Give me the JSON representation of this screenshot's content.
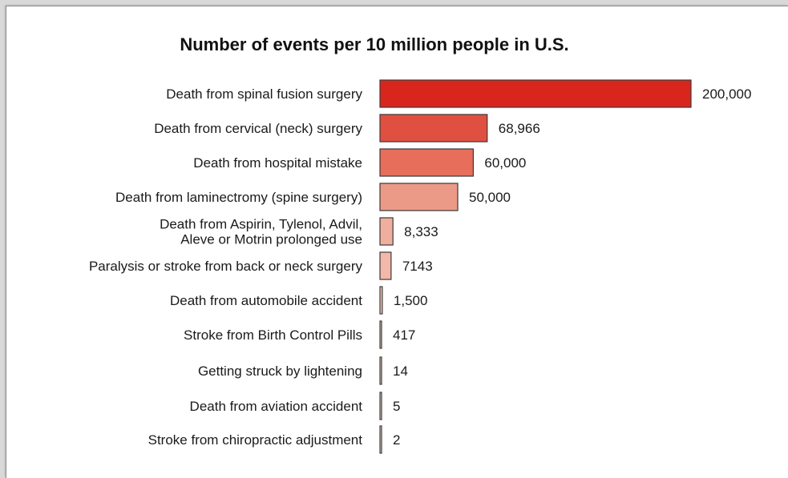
{
  "chart_data": {
    "type": "bar",
    "orientation": "horizontal",
    "title": "Number of events per 10 million people in U.S.",
    "xlabel": "",
    "ylabel": "",
    "grid": false,
    "categories": [
      [
        "Death from spinal fusion surgery"
      ],
      [
        "Death from cervical (neck) surgery"
      ],
      [
        "Death from hospital mistake"
      ],
      [
        "Death from laminectromy (spine surgery)"
      ],
      [
        "Death from  Aspirin, Tylenol, Advil,",
        "Aleve or Motrin prolonged use"
      ],
      [
        "Paralysis or stroke from back or neck surgery"
      ],
      [
        "Death from automobile accident"
      ],
      [
        "Stroke from Birth Control Pills"
      ],
      [
        "Getting struck by lightening"
      ],
      [
        "Death from aviation accident"
      ],
      [
        "Stroke from chiropractic adjustment"
      ]
    ],
    "values": [
      200000,
      68966,
      60000,
      50000,
      8333,
      7143,
      1500,
      417,
      14,
      5,
      2
    ],
    "value_labels": [
      "200,000",
      "68,966",
      "60,000",
      "50,000",
      "8,333",
      "7143",
      "1,500",
      "417",
      "14",
      "5",
      "2"
    ],
    "xlim": [
      0,
      200000
    ],
    "bar_colors": [
      "#d9261c",
      "#e05040",
      "#e66e5a",
      "#ec9a88",
      "#f0ae9e",
      "#f3b8aa",
      "#f5c2b5",
      "#f7cbbf",
      "#f8d2c7",
      "#f9d7cd",
      "#fadcd3"
    ]
  }
}
